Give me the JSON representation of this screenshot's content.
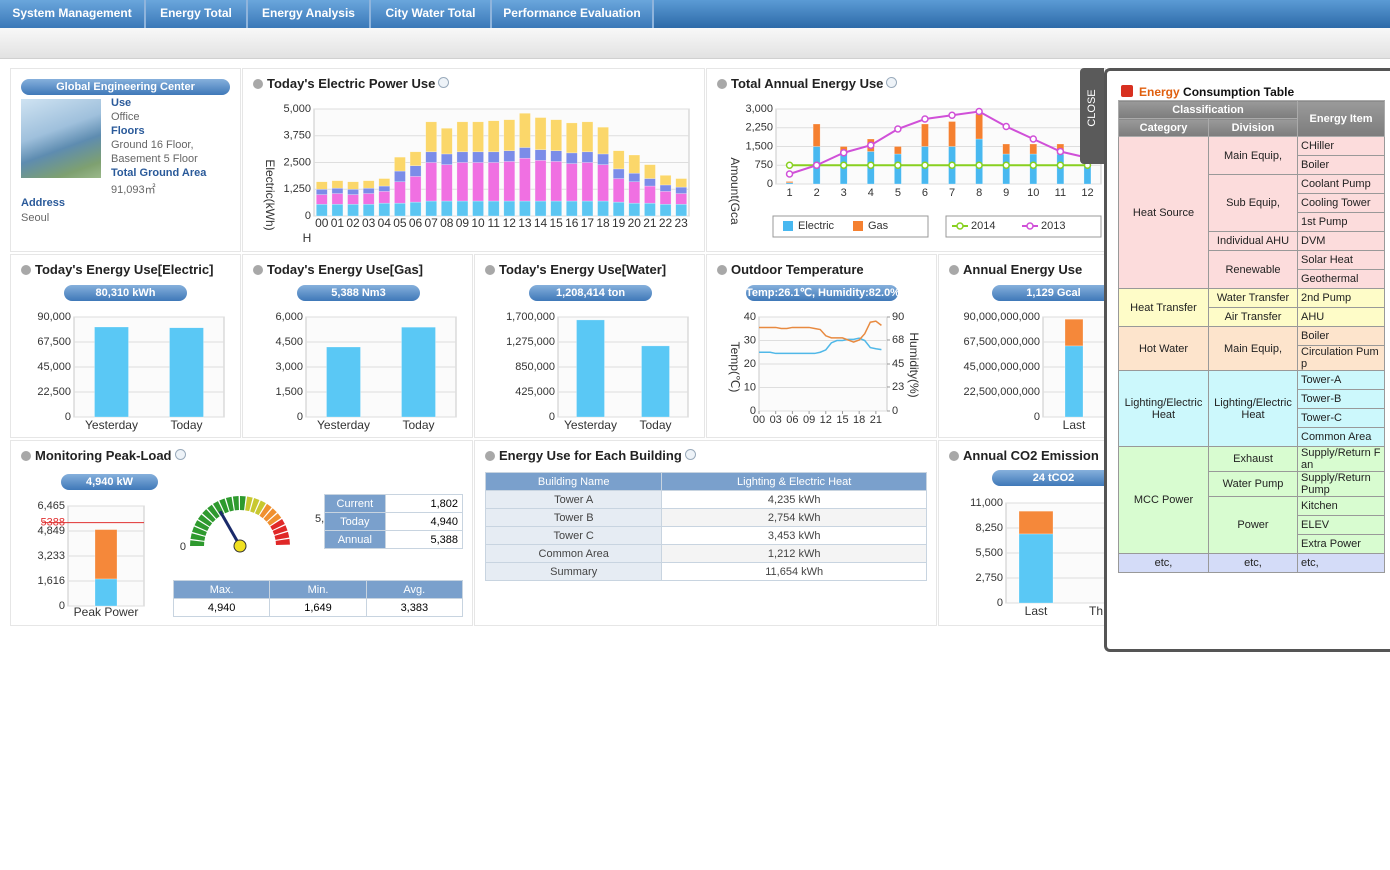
{
  "nav": {
    "tabs": [
      "System Management",
      "Energy Total",
      "Energy Analysis",
      "City Water Total",
      "Performance Evaluation"
    ]
  },
  "building": {
    "name": "Global Engineering Center",
    "use_label": "Use",
    "use": "Office",
    "floors_label": "Floors",
    "floors": [
      "Ground 16 Floor,",
      "Basement 5 Floor"
    ],
    "area_label": "Total Ground Area",
    "area": "91,093㎡",
    "address_label": "Address",
    "address": "Seoul"
  },
  "electric_power": {
    "title": "Today's Electric Power Use",
    "chart": {
      "type": "bar",
      "y_label": "Electric(kWh)",
      "x_label": "H",
      "categories": [
        "00",
        "01",
        "02",
        "03",
        "04",
        "05",
        "06",
        "07",
        "08",
        "09",
        "10",
        "11",
        "12",
        "13",
        "14",
        "15",
        "16",
        "17",
        "18",
        "19",
        "20",
        "21",
        "22",
        "23"
      ],
      "ylim": [
        0,
        5000
      ],
      "yticks": [
        0,
        {
          "value": 1250,
          "label": "1,250"
        },
        {
          "value": 2500,
          "label": "2,500"
        },
        {
          "value": 3750,
          "label": "3,750"
        },
        {
          "value": 5000,
          "label": "5,000"
        }
      ],
      "series": [
        {
          "color": "#5cc6f2",
          "values": [
            550,
            550,
            550,
            550,
            600,
            600,
            650,
            700,
            700,
            700,
            700,
            700,
            700,
            700,
            700,
            700,
            700,
            700,
            700,
            650,
            600,
            600,
            550,
            550
          ]
        },
        {
          "color": "#f070e2",
          "values": [
            450,
            500,
            450,
            500,
            550,
            1000,
            1200,
            1800,
            1700,
            1800,
            1800,
            1800,
            1850,
            2000,
            1900,
            1850,
            1750,
            1800,
            1700,
            1100,
            1000,
            800,
            600,
            500
          ]
        },
        {
          "color": "#7b8ce8",
          "values": [
            250,
            250,
            250,
            250,
            250,
            500,
            500,
            500,
            500,
            500,
            500,
            500,
            500,
            500,
            500,
            500,
            500,
            500,
            500,
            450,
            400,
            350,
            300,
            300
          ]
        },
        {
          "color": "#fbd76a",
          "values": [
            350,
            350,
            350,
            350,
            350,
            650,
            650,
            1400,
            1200,
            1400,
            1400,
            1450,
            1450,
            1600,
            1500,
            1450,
            1400,
            1400,
            1250,
            850,
            850,
            650,
            450,
            400
          ]
        }
      ]
    }
  },
  "annual_energy_use": {
    "title": "Total Annual Energy Use",
    "chart": {
      "type": "bar",
      "y_label": "Amount(Gca",
      "categories": [
        "1",
        "2",
        "3",
        "4",
        "5",
        "6",
        "7",
        "8",
        "9",
        "10",
        "11",
        "12"
      ],
      "ylim": [
        0,
        3000
      ],
      "yticks": [
        0,
        750,
        {
          "value": 1500,
          "label": "1,500"
        },
        {
          "value": 2250,
          "label": "2,250"
        },
        {
          "value": 3000,
          "label": "3,000"
        }
      ],
      "series": [
        {
          "name": "Electric",
          "color": "#48b8f0",
          "values": [
            50,
            1500,
            1200,
            1300,
            1200,
            1500,
            1500,
            1800,
            1200,
            1200,
            1200,
            1000
          ]
        },
        {
          "name": "Gas",
          "color": "#f58030",
          "values": [
            50,
            900,
            300,
            500,
            300,
            900,
            1000,
            1000,
            400,
            400,
            400,
            300
          ]
        },
        {
          "name": "2014",
          "type": "line",
          "color": "#88d020",
          "values": [
            750,
            750,
            750,
            750,
            750,
            750,
            750,
            750,
            750,
            750,
            750,
            750
          ]
        },
        {
          "name": "2013",
          "type": "line",
          "color": "#d050d8",
          "values": [
            400,
            750,
            1250,
            1550,
            2200,
            2600,
            2750,
            2900,
            2300,
            1800,
            1300,
            1050
          ]
        }
      ]
    }
  },
  "today_electric": {
    "title": "Today's Energy Use[Electric]",
    "badge": "80,310 kWh",
    "chart": {
      "type": "bar",
      "categories": [
        "Yesterday",
        "Today"
      ],
      "ylim": [
        0,
        90000
      ],
      "yticks": [
        0,
        {
          "value": 22500,
          "label": "22,500"
        },
        {
          "value": 45000,
          "label": "45,000"
        },
        {
          "value": 67500,
          "label": "67,500"
        },
        {
          "value": 90000,
          "label": "90,000"
        }
      ],
      "series": [
        {
          "color": "#5ac8f5",
          "values": [
            81000,
            80310
          ]
        }
      ]
    }
  },
  "today_gas": {
    "title": "Today's Energy Use[Gas]",
    "badge": "5,388 Nm3",
    "chart": {
      "type": "bar",
      "categories": [
        "Yesterday",
        "Today"
      ],
      "ylim": [
        0,
        6000
      ],
      "yticks": [
        0,
        {
          "value": 1500,
          "label": "1,500"
        },
        {
          "value": 3000,
          "label": "3,000"
        },
        {
          "value": 4500,
          "label": "4,500"
        },
        {
          "value": 6000,
          "label": "6,000"
        }
      ],
      "series": [
        {
          "color": "#5ac8f5",
          "values": [
            4200,
            5388
          ]
        }
      ]
    }
  },
  "today_water": {
    "title": "Today's Energy Use[Water]",
    "badge": "1,208,414 ton",
    "chart": {
      "type": "bar",
      "categories": [
        "Yesterday",
        "Today"
      ],
      "ylim": [
        0,
        1700000
      ],
      "yticks": [
        0,
        {
          "value": 425000,
          "label": "425,000"
        },
        {
          "value": 850000,
          "label": "850,000"
        },
        {
          "value": 1275000,
          "label": "1,275,000"
        },
        {
          "value": 1700000,
          "label": "1,700,000"
        }
      ],
      "series": [
        {
          "color": "#5ac8f5",
          "values": [
            1650000,
            1208414
          ]
        }
      ]
    }
  },
  "outdoor_temperature": {
    "title": "Outdoor Temperature",
    "badge": "Temp:26.1℃, Humidity:82.0%",
    "chart": {
      "type": "line",
      "y_label": "Temp(℃)",
      "y2_label": "Humidity(%)",
      "x": [
        0,
        1,
        2,
        3,
        4,
        5,
        6,
        7,
        8,
        9,
        10,
        11,
        12,
        13,
        14,
        15,
        16,
        17,
        18,
        19,
        20,
        21,
        22
      ],
      "xlim": [
        0,
        23
      ],
      "xticks": [
        {
          "value": 0,
          "label": "00"
        },
        {
          "value": 3,
          "label": "03"
        },
        {
          "value": 6,
          "label": "06"
        },
        {
          "value": 9,
          "label": "09"
        },
        12,
        15,
        18,
        21
      ],
      "ylim": [
        0,
        40
      ],
      "yticks": [
        0,
        10,
        20,
        30,
        40
      ],
      "y2lim": [
        0,
        90
      ],
      "y2ticks": [
        0,
        23,
        45,
        68,
        90
      ],
      "series": [
        {
          "color": "#50b8e8",
          "values": [
            25,
            25,
            25,
            24.5,
            24.5,
            24.5,
            24.5,
            24.5,
            24.5,
            24.5,
            24.5,
            25,
            26,
            29,
            30,
            30,
            30.5,
            30.5,
            31,
            30,
            27,
            26.5,
            26.1
          ]
        },
        {
          "color": "#e88a40",
          "axis": "y2",
          "values": [
            80,
            80,
            80,
            80,
            79,
            79,
            80,
            80,
            80,
            80,
            79,
            78,
            72,
            70,
            70,
            70,
            68,
            66,
            68,
            74,
            85,
            86,
            82
          ]
        }
      ]
    }
  },
  "annual_energy": {
    "title": "Annual Energy Use",
    "badge": "1,129 Gcal",
    "chart": {
      "type": "bar",
      "categories": [
        "Last"
      ],
      "ylim": [
        0,
        90000000000
      ],
      "yticks": [
        0,
        {
          "value": 22500000000,
          "label": "22,500,000,000"
        },
        {
          "value": 45000000000,
          "label": "45,000,000,000"
        },
        {
          "value": 67500000000,
          "label": "67,500,000,000"
        },
        {
          "value": 90000000000,
          "label": "90,000,000,000"
        }
      ],
      "series": [
        {
          "color": "#5ac8f5",
          "values": [
            64000000000
          ]
        },
        {
          "color": "#f5883a",
          "values": [
            24000000000
          ]
        }
      ]
    }
  },
  "peak_load": {
    "title": "Monitoring Peak-Load",
    "badge": "4,940 kW",
    "chart": {
      "type": "bar",
      "categories": [
        "Peak Power"
      ],
      "ylim": [
        0,
        6465
      ],
      "yticks": [
        0,
        {
          "value": 1616,
          "label": "1,616"
        },
        {
          "value": 3233,
          "label": "3,233"
        },
        {
          "value": 4849,
          "label": "4,849"
        },
        {
          "value": 6465,
          "label": "6,465"
        }
      ],
      "ref_line": 5388,
      "ref_color": "#e03030",
      "series": [
        {
          "color": "#5ac8f5",
          "values": [
            1750
          ]
        },
        {
          "color": "#f5883a",
          "values": [
            3190
          ]
        }
      ]
    },
    "gauge": {
      "min": 0,
      "max": {
        "value": 5388,
        "label": "5,388"
      },
      "needle": 1802
    },
    "current_table": [
      {
        "label": "Current",
        "value": "1,802"
      },
      {
        "label": "Today",
        "value": "4,940"
      },
      {
        "label": "Annual",
        "value": "5,388"
      }
    ],
    "stats": {
      "headers": [
        "Max.",
        "Min.",
        "Avg."
      ],
      "values": [
        "4,940",
        "1,649",
        "3,383"
      ]
    }
  },
  "building_energy": {
    "title": "Energy Use for Each Building",
    "table": {
      "headers": [
        "Building Name",
        "Lighting & Electric Heat"
      ],
      "rows": [
        [
          "Tower A",
          "4,235 kWh"
        ],
        [
          "Tower B",
          "2,754 kWh"
        ],
        [
          "Tower C",
          "3,453 kWh"
        ],
        [
          "Common Area",
          "1,212 kWh"
        ],
        [
          "Summary",
          "11,654 kWh"
        ]
      ]
    }
  },
  "co2": {
    "title": "Annual CO2 Emission",
    "badge": "24 tCO2",
    "chart": {
      "type": "bar",
      "categories": [
        "Last",
        "Th"
      ],
      "ylim": [
        0,
        11000
      ],
      "yticks": [
        0,
        {
          "value": 2750,
          "label": "2,750"
        },
        {
          "value": 5500,
          "label": "5,500"
        },
        {
          "value": 8250,
          "label": "8,250"
        },
        {
          "value": 11000,
          "label": "11,000"
        }
      ],
      "series": [
        {
          "color": "#5ac8f5",
          "values": [
            7600,
            null
          ]
        },
        {
          "color": "#f5883a",
          "values": [
            2500,
            null
          ]
        }
      ]
    }
  },
  "consumption_table": {
    "close": "CLOSE",
    "title": {
      "highlight": "Energy",
      "rest": "Consumption Table"
    },
    "headers": {
      "classification": "Classification",
      "category": "Category",
      "division": "Division",
      "item": "Energy Item"
    },
    "groups": [
      {
        "category": "Heat Source",
        "color": "#fcdcdc",
        "divisions": [
          {
            "name": "Main Equip,",
            "items": [
              "CHiller",
              "Boiler"
            ]
          },
          {
            "name": "Sub Equip,",
            "items": [
              "Coolant Pump",
              "Cooling Tower",
              "1st Pump"
            ]
          },
          {
            "name": "Individual AHU",
            "items": [
              "DVM"
            ]
          },
          {
            "name": "Renewable",
            "items": [
              "Solar Heat",
              "Geothermal"
            ]
          }
        ]
      },
      {
        "category": "Heat Transfer",
        "color": "#fefcc8",
        "divisions": [
          {
            "name": "Water Transfer",
            "items": [
              "2nd Pump"
            ]
          },
          {
            "name": "Air Transfer",
            "items": [
              "AHU"
            ]
          }
        ]
      },
      {
        "category": "Hot Water",
        "color": "#fde4cc",
        "divisions": [
          {
            "name": "Main Equip,",
            "items": [
              "Boiler",
              "Circulation Pump"
            ]
          }
        ]
      },
      {
        "category": "Lighting/Electric Heat",
        "color": "#ccf8fc",
        "divisions": [
          {
            "name": "Lighting/Electric Heat",
            "items": [
              "Tower-A",
              "Tower-B",
              "Tower-C",
              "Common Area"
            ]
          }
        ]
      },
      {
        "category": "MCC Power",
        "color": "#d8fcd0",
        "divisions": [
          {
            "name": "Exhaust",
            "items": [
              "Supply/Return Fan"
            ]
          },
          {
            "name": "Water Pump",
            "items": [
              "Supply/Return Pump"
            ]
          },
          {
            "name": "Power",
            "items": [
              "Kitchen",
              "ELEV",
              "Extra Power"
            ]
          }
        ]
      },
      {
        "category": "etc,",
        "color": "#d4dcf8",
        "divisions": [
          {
            "name": "etc,",
            "items": [
              "etc,"
            ]
          }
        ]
      }
    ]
  }
}
